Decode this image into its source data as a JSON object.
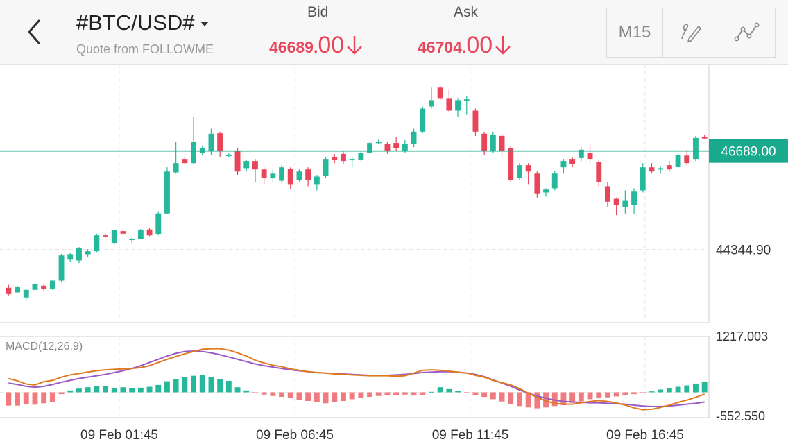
{
  "header": {
    "symbol": "#BTC/USD#",
    "subtitle": "Quote from FOLLOWME",
    "bid_label": "Bid",
    "ask_label": "Ask",
    "bid_main": "46689.",
    "bid_big": "00",
    "ask_main": "46704.",
    "ask_big": "00",
    "price_color": "#e8455a",
    "timeframe": "M15"
  },
  "icons": {
    "back": "back-arrow-icon",
    "caret": "dropdown-caret-icon",
    "down": "down-arrow-icon",
    "draw": "pencil-draw-icon",
    "indicator": "line-indicator-icon"
  },
  "chart_data": {
    "type": "candlestick",
    "current_price": 46689.0,
    "current_price_label": "46689.00",
    "y_tick_label": "44344.90",
    "x_labels": [
      "09 Feb 01:45",
      "09 Feb 06:45",
      "09 Feb 11:45",
      "09 Feb 16:45"
    ],
    "colors": {
      "up": "#26b89a",
      "down": "#e8455a",
      "price_line": "#19a98d"
    },
    "candles": [
      [
        43430,
        43280,
        43500,
        43250
      ],
      [
        43320,
        43450,
        43480,
        43300
      ],
      [
        43200,
        43380,
        43400,
        43120
      ],
      [
        43380,
        43520,
        43560,
        43350
      ],
      [
        43480,
        43400,
        43520,
        43350
      ],
      [
        43400,
        43600,
        43620,
        43380
      ],
      [
        43600,
        44200,
        44240,
        43560
      ],
      [
        44100,
        44230,
        44260,
        44050
      ],
      [
        44080,
        44380,
        44400,
        44020
      ],
      [
        44230,
        44300,
        44350,
        44160
      ],
      [
        44300,
        44680,
        44720,
        44280
      ],
      [
        44680,
        44670,
        44720,
        44630
      ],
      [
        44500,
        44800,
        44820,
        44480
      ],
      [
        44780,
        44720,
        44820,
        44680
      ],
      [
        44580,
        44600,
        44640,
        44500
      ],
      [
        44600,
        44800,
        44830,
        44580
      ],
      [
        44820,
        44680,
        44850,
        44660
      ],
      [
        44700,
        45200,
        45250,
        44680
      ],
      [
        45200,
        46200,
        46300,
        45180
      ],
      [
        46180,
        46400,
        46900,
        46150
      ],
      [
        46500,
        46400,
        46550,
        46380
      ],
      [
        46400,
        46900,
        47500,
        46380
      ],
      [
        46650,
        46750,
        46800,
        46600
      ],
      [
        46700,
        47100,
        47220,
        46600
      ],
      [
        47110,
        46700,
        47150,
        46550
      ],
      [
        46580,
        46600,
        46650,
        46550
      ],
      [
        46700,
        46200,
        46750,
        46120
      ],
      [
        46280,
        46450,
        46480,
        46200
      ],
      [
        46450,
        46250,
        46500,
        45950
      ],
      [
        46250,
        46050,
        46300,
        45900
      ],
      [
        46050,
        46150,
        46250,
        45950
      ],
      [
        45980,
        46300,
        46350,
        45930
      ],
      [
        46270,
        45900,
        46300,
        45780
      ],
      [
        46000,
        46200,
        46250,
        45960
      ],
      [
        46250,
        46000,
        46300,
        45850
      ],
      [
        45900,
        46080,
        46120,
        45750
      ],
      [
        46100,
        46500,
        46550,
        46050
      ],
      [
        46550,
        46480,
        46620,
        46400
      ],
      [
        46620,
        46450,
        46680,
        46380
      ],
      [
        46480,
        46500,
        46550,
        46300
      ],
      [
        46480,
        46650,
        46700,
        46450
      ],
      [
        46650,
        46880,
        46920,
        46650
      ],
      [
        46900,
        46910,
        46960,
        46850
      ],
      [
        46850,
        46700,
        46900,
        46620
      ],
      [
        46880,
        46750,
        47020,
        46700
      ],
      [
        46700,
        46850,
        46950,
        46650
      ],
      [
        46850,
        47150,
        47220,
        46780
      ],
      [
        47150,
        47700,
        47750,
        47120
      ],
      [
        47750,
        47900,
        48200,
        47700
      ],
      [
        48200,
        47950,
        48250,
        47900
      ],
      [
        47950,
        47650,
        48150,
        47600
      ],
      [
        47650,
        47900,
        47950,
        47500
      ],
      [
        47900,
        47920,
        48000,
        47550
      ],
      [
        47650,
        47150,
        47700,
        47050
      ],
      [
        47100,
        46700,
        47150,
        46600
      ],
      [
        46700,
        47080,
        47150,
        46650
      ],
      [
        47050,
        46700,
        47100,
        46550
      ],
      [
        46750,
        46000,
        46800,
        45950
      ],
      [
        46050,
        46350,
        46400,
        46000
      ],
      [
        46350,
        46200,
        46400,
        45900
      ],
      [
        46150,
        45680,
        46200,
        45580
      ],
      [
        45700,
        45770,
        45800,
        45600
      ],
      [
        45800,
        46150,
        46220,
        45750
      ],
      [
        46300,
        46450,
        46500,
        46150
      ],
      [
        46500,
        46380,
        46550,
        46300
      ],
      [
        46520,
        46720,
        46780,
        46450
      ],
      [
        46650,
        46500,
        46850,
        46400
      ],
      [
        46430,
        45950,
        46480,
        45850
      ],
      [
        45850,
        45480,
        45950,
        45350
      ],
      [
        45550,
        45400,
        45580,
        45160
      ],
      [
        45350,
        45500,
        45750,
        45200
      ],
      [
        45400,
        45720,
        45800,
        45180
      ],
      [
        45750,
        46300,
        46400,
        45700
      ],
      [
        46300,
        46200,
        46400,
        46150
      ],
      [
        46250,
        46280,
        46330,
        46150
      ],
      [
        46350,
        46250,
        46450,
        46200
      ],
      [
        46320,
        46600,
        46650,
        46280
      ],
      [
        46580,
        46400,
        46720,
        46350
      ],
      [
        46500,
        47000,
        47050,
        46450
      ],
      [
        47020,
        47000,
        47080,
        46980
      ]
    ],
    "macd": {
      "label": "MACD(12,26,9)",
      "ymax_label": "1217.003",
      "ymin_label": "-552.550",
      "ymax": 1217.003,
      "ymin": -552.55,
      "histogram": [
        -290,
        -290,
        -250,
        -270,
        -240,
        -220,
        -40,
        40,
        80,
        110,
        140,
        130,
        90,
        110,
        90,
        100,
        120,
        160,
        240,
        290,
        330,
        360,
        370,
        340,
        290,
        250,
        110,
        40,
        -20,
        -50,
        -80,
        -100,
        -130,
        -160,
        -190,
        -220,
        -240,
        -220,
        -190,
        -150,
        -120,
        -100,
        -80,
        -70,
        -60,
        -50,
        -70,
        -60,
        10,
        110,
        70,
        30,
        -20,
        -60,
        -100,
        -150,
        -200,
        -250,
        -300,
        -330,
        -350,
        -330,
        -300,
        -280,
        -230,
        -200,
        -150,
        -130,
        -110,
        -90,
        -60,
        -40,
        -10,
        20,
        60,
        90,
        120,
        150,
        190,
        230
      ],
      "macd_line": [
        300,
        250,
        180,
        160,
        230,
        260,
        330,
        380,
        410,
        440,
        470,
        490,
        500,
        510,
        520,
        540,
        580,
        650,
        720,
        780,
        840,
        890,
        940,
        950,
        950,
        920,
        860,
        790,
        700,
        640,
        590,
        560,
        510,
        480,
        450,
        430,
        420,
        400,
        390,
        380,
        370,
        360,
        360,
        360,
        350,
        360,
        420,
        480,
        490,
        480,
        460,
        440,
        420,
        370,
        330,
        260,
        210,
        160,
        80,
        -20,
        -110,
        -190,
        -240,
        -260,
        -260,
        -230,
        -200,
        -180,
        -200,
        -230,
        -280,
        -340,
        -380,
        -370,
        -330,
        -280,
        -220,
        -170,
        -110,
        -40
      ],
      "signal_line": [
        200,
        170,
        130,
        110,
        130,
        170,
        220,
        260,
        300,
        330,
        360,
        390,
        430,
        470,
        520,
        580,
        650,
        720,
        790,
        850,
        890,
        900,
        890,
        860,
        820,
        770,
        720,
        670,
        620,
        580,
        550,
        520,
        490,
        470,
        450,
        430,
        420,
        410,
        400,
        390,
        380,
        370,
        370,
        370,
        380,
        390,
        410,
        430,
        440,
        450,
        450,
        440,
        420,
        390,
        340,
        270,
        200,
        130,
        50,
        -20,
        -80,
        -130,
        -170,
        -200,
        -210,
        -220,
        -230,
        -230,
        -240,
        -250,
        -260,
        -280,
        -300,
        -310,
        -310,
        -300,
        -280,
        -260,
        -240,
        -210
      ]
    }
  }
}
